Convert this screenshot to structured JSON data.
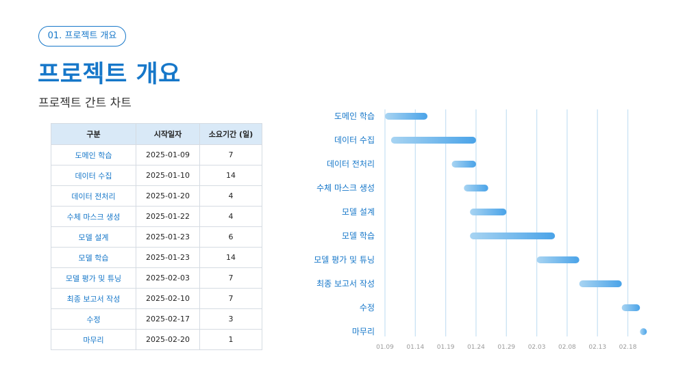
{
  "header": {
    "section_pill": "01. 프로젝트 개요",
    "title": "프로젝트 개요",
    "subtitle": "프로젝트 간트 차트"
  },
  "table": {
    "columns": [
      "구분",
      "시작일자",
      "소요기간 (일)"
    ],
    "rows": [
      [
        "도메인 학습",
        "2025-01-09",
        "7"
      ],
      [
        "데이터 수집",
        "2025-01-10",
        "14"
      ],
      [
        "데이터 전처리",
        "2025-01-20",
        "4"
      ],
      [
        "수체 마스크 생성",
        "2025-01-22",
        "4"
      ],
      [
        "모델 설계",
        "2025-01-23",
        "6"
      ],
      [
        "모델 학습",
        "2025-01-23",
        "14"
      ],
      [
        "모델 평가 및 튜닝",
        "2025-02-03",
        "7"
      ],
      [
        "최종 보고서 작성",
        "2025-02-10",
        "7"
      ],
      [
        "수정",
        "2025-02-17",
        "3"
      ],
      [
        "마무리",
        "2025-02-20",
        "1"
      ]
    ]
  },
  "chart_data": {
    "type": "bar",
    "orientation": "horizontal-gantt",
    "categories": [
      "도메인 학습",
      "데이터 수집",
      "데이터 전처리",
      "수체 마스크 생성",
      "모델 설계",
      "모델 학습",
      "모델 평가 및 튜닝",
      "최종 보고서 작성",
      "수정",
      "마무리"
    ],
    "start": [
      "2025-01-09",
      "2025-01-10",
      "2025-01-20",
      "2025-01-22",
      "2025-01-23",
      "2025-01-23",
      "2025-02-03",
      "2025-02-10",
      "2025-02-17",
      "2025-02-20"
    ],
    "duration_days": [
      7,
      14,
      4,
      4,
      6,
      14,
      7,
      7,
      3,
      1
    ],
    "x_ticks": [
      "01.09",
      "01.14",
      "01.19",
      "01.24",
      "01.29",
      "02.03",
      "02.08",
      "02.13",
      "02.18"
    ],
    "x_tick_dates": [
      "2025-01-09",
      "2025-01-14",
      "2025-01-19",
      "2025-01-24",
      "2025-01-29",
      "2025-02-03",
      "2025-02-08",
      "2025-02-13",
      "2025-02-18"
    ],
    "xlim": [
      "2025-01-09",
      "2025-02-22"
    ],
    "grid": true,
    "colors": {
      "bar_light": "#a8d4f2",
      "bar_dark": "#4aa3e8",
      "grid": "#c9e2f4",
      "label": "#1677c9",
      "tick": "#9a9a9a"
    }
  }
}
